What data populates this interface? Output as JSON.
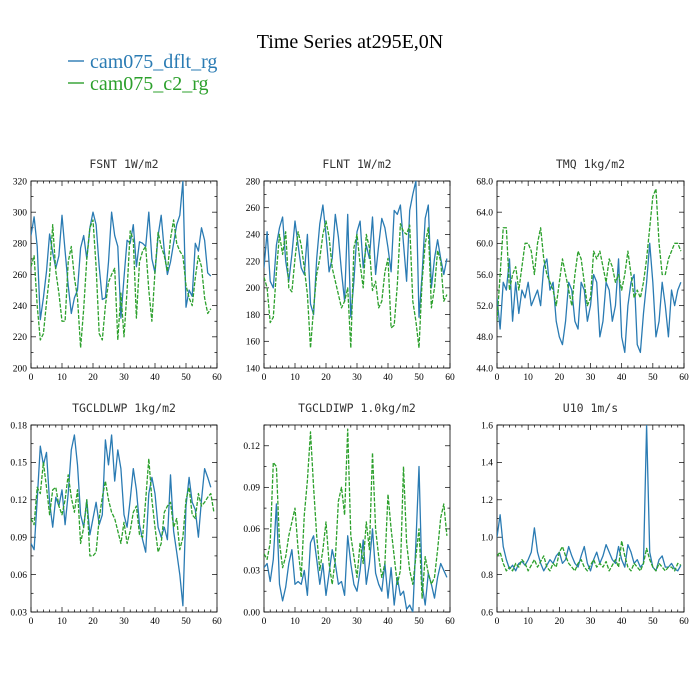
{
  "figure": {
    "title": "Time Series at295E,0N",
    "legend": [
      {
        "name": "cam075_dflt_rg",
        "color": "#2a7bb3",
        "dash": "none"
      },
      {
        "name": "cam075_c2_rg",
        "color": "#2ca02c",
        "dash": "4,1.5"
      }
    ]
  },
  "chart_data": [
    {
      "type": "line",
      "title": "FSNT   1W/m2",
      "xlim": [
        0,
        60
      ],
      "ylim": [
        200,
        320
      ],
      "xticks": [
        0,
        10,
        20,
        30,
        40,
        50,
        60
      ],
      "yticks": [
        "200",
        "220",
        "240",
        "260",
        "280",
        "300",
        "320"
      ],
      "series": [
        {
          "name": "cam075_dflt_rg",
          "values": [
            285,
            297,
            278,
            231,
            245,
            262,
            286,
            274,
            264,
            272,
            298,
            275,
            253,
            235,
            245,
            250,
            277,
            285,
            270,
            290,
            300,
            292,
            265,
            244,
            245,
            268,
            300,
            285,
            278,
            232,
            258,
            282,
            280,
            292,
            265,
            281,
            280,
            278,
            300,
            270,
            261,
            285,
            298,
            275,
            260,
            268,
            280,
            292,
            298,
            320,
            239,
            250,
            246,
            280,
            275,
            290,
            282,
            261,
            259
          ]
        },
        {
          "name": "cam075_c2_rg",
          "values": [
            265,
            272,
            240,
            218,
            222,
            242,
            260,
            292,
            262,
            248,
            230,
            230,
            268,
            278,
            258,
            245,
            213,
            238,
            270,
            290,
            295,
            265,
            222,
            218,
            240,
            255,
            260,
            264,
            218,
            248,
            220,
            250,
            288,
            282,
            232,
            268,
            275,
            278,
            250,
            230,
            262,
            287,
            278,
            272,
            262,
            283,
            295,
            280,
            275,
            272,
            253,
            245,
            240,
            258,
            272,
            265,
            245,
            235,
            238
          ]
        }
      ]
    },
    {
      "type": "line",
      "title": "FLNT   1W/m2",
      "xlim": [
        0,
        60
      ],
      "ylim": [
        140,
        280
      ],
      "xticks": [
        0,
        10,
        20,
        30,
        40,
        50,
        60
      ],
      "yticks": [
        "140",
        "160",
        "180",
        "200",
        "220",
        "240",
        "260",
        "280"
      ],
      "series": [
        {
          "name": "cam075_dflt_rg",
          "values": [
            215,
            242,
            205,
            200,
            232,
            245,
            253,
            220,
            205,
            225,
            250,
            232,
            215,
            210,
            240,
            188,
            180,
            222,
            248,
            262,
            240,
            212,
            222,
            255,
            238,
            212,
            190,
            255,
            178,
            205,
            242,
            250,
            215,
            232,
            222,
            253,
            210,
            232,
            252,
            245,
            230,
            212,
            258,
            255,
            262,
            233,
            205,
            258,
            270,
            280,
            178,
            210,
            252,
            262,
            200,
            222,
            236,
            222,
            210,
            222
          ]
        },
        {
          "name": "cam075_c2_rg",
          "values": [
            208,
            200,
            174,
            178,
            212,
            240,
            225,
            242,
            200,
            197,
            222,
            242,
            232,
            215,
            195,
            155,
            185,
            210,
            222,
            240,
            250,
            238,
            215,
            205,
            195,
            185,
            190,
            200,
            155,
            230,
            240,
            218,
            200,
            240,
            230,
            198,
            205,
            185,
            190,
            212,
            222,
            170,
            172,
            202,
            248,
            242,
            240,
            247,
            190,
            175,
            155,
            205,
            233,
            245,
            185,
            200,
            228,
            220,
            190,
            195
          ]
        }
      ]
    },
    {
      "type": "line",
      "title": "TMQ   1kg/m2",
      "xlim": [
        0,
        60
      ],
      "ylim": [
        44,
        68
      ],
      "xticks": [
        0,
        10,
        20,
        30,
        40,
        50,
        60
      ],
      "yticks": [
        "44.0",
        "48.0",
        "52.0",
        "56.0",
        "60.0",
        "64.0",
        "68.0"
      ],
      "series": [
        {
          "name": "cam075_dflt_rg",
          "values": [
            53,
            49,
            55,
            54,
            58,
            50,
            55,
            51,
            54,
            53,
            55,
            52,
            53,
            54,
            52,
            57,
            58,
            54,
            55,
            50,
            48,
            47,
            50,
            55,
            54,
            50,
            49,
            55,
            54,
            50,
            52,
            56,
            55,
            48,
            50,
            55,
            54,
            50,
            52,
            58,
            48,
            46,
            52,
            55,
            56,
            47,
            46,
            51,
            55,
            60,
            55,
            48,
            50,
            55,
            52,
            48,
            54,
            52,
            54,
            55
          ]
        },
        {
          "name": "cam075_c2_rg",
          "values": [
            50,
            56,
            62,
            62,
            54,
            56,
            57,
            54,
            57,
            60,
            60,
            59,
            56,
            60,
            62,
            58,
            56,
            55,
            54,
            52,
            55,
            58,
            56,
            54,
            52,
            56,
            59,
            58,
            55,
            52,
            53,
            59,
            58,
            59,
            57,
            55,
            58,
            57,
            55,
            56,
            54,
            56,
            59,
            56,
            53,
            54,
            53,
            55,
            58,
            62,
            66,
            67,
            60,
            56,
            56,
            58,
            59,
            60,
            60,
            59
          ]
        }
      ]
    },
    {
      "type": "line",
      "title": "TGCLDLWP   1kg/m2",
      "xlim": [
        0,
        60
      ],
      "ylim": [
        0.03,
        0.18
      ],
      "xticks": [
        0,
        10,
        20,
        30,
        40,
        50,
        60
      ],
      "yticks": [
        "0.03",
        "0.06",
        "0.09",
        "0.12",
        "0.15",
        "0.18"
      ],
      "series": [
        {
          "name": "cam075_dflt_rg",
          "values": [
            0.085,
            0.08,
            0.12,
            0.163,
            0.148,
            0.158,
            0.118,
            0.098,
            0.122,
            0.115,
            0.128,
            0.1,
            0.125,
            0.16,
            0.172,
            0.148,
            0.108,
            0.098,
            0.12,
            0.092,
            0.105,
            0.118,
            0.1,
            0.108,
            0.168,
            0.148,
            0.172,
            0.135,
            0.16,
            0.145,
            0.108,
            0.098,
            0.12,
            0.145,
            0.128,
            0.1,
            0.088,
            0.078,
            0.125,
            0.138,
            0.125,
            0.098,
            0.09,
            0.098,
            0.088,
            0.14,
            0.095,
            0.078,
            0.06,
            0.035,
            0.115,
            0.138,
            0.118,
            0.112,
            0.09,
            0.12,
            0.145,
            0.138,
            0.13
          ]
        },
        {
          "name": "cam075_c2_rg",
          "values": [
            0.105,
            0.1,
            0.13,
            0.125,
            0.15,
            0.13,
            0.108,
            0.128,
            0.13,
            0.115,
            0.108,
            0.12,
            0.14,
            0.122,
            0.11,
            0.128,
            0.085,
            0.098,
            0.12,
            0.075,
            0.075,
            0.078,
            0.105,
            0.122,
            0.135,
            0.12,
            0.11,
            0.105,
            0.095,
            0.085,
            0.102,
            0.085,
            0.095,
            0.11,
            0.115,
            0.092,
            0.09,
            0.12,
            0.153,
            0.12,
            0.098,
            0.078,
            0.085,
            0.11,
            0.115,
            0.118,
            0.098,
            0.105,
            0.08,
            0.09,
            0.12,
            0.13,
            0.108,
            0.105,
            0.125,
            0.115,
            0.118,
            0.122,
            0.125,
            0.11
          ]
        }
      ]
    },
    {
      "type": "line",
      "title": "TGCLDIWP   1.0kg/m2",
      "xlim": [
        0,
        60
      ],
      "ylim": [
        0,
        0.135
      ],
      "xticks": [
        0,
        10,
        20,
        30,
        40,
        50,
        60
      ],
      "yticks": [
        "0.00",
        "0.03",
        "0.06",
        "0.09",
        "0.12"
      ],
      "series": [
        {
          "name": "cam075_dflt_rg",
          "values": [
            0.032,
            0.035,
            0.022,
            0.038,
            0.078,
            0.02,
            0.008,
            0.018,
            0.035,
            0.045,
            0.02,
            0.022,
            0.02,
            0.03,
            0.012,
            0.05,
            0.055,
            0.038,
            0.02,
            0.035,
            0.012,
            0.028,
            0.045,
            0.035,
            0.02,
            0.022,
            0.012,
            0.055,
            0.035,
            0.02,
            0.015,
            0.03,
            0.052,
            0.02,
            0.035,
            0.06,
            0.028,
            0.02,
            0.015,
            0.035,
            0.01,
            0.032,
            0.005,
            0.025,
            0.012,
            0.015,
            0.002,
            0.005,
            0.0,
            0.05,
            0.105,
            0.02,
            0.005,
            0.028,
            0.02,
            0.01,
            0.025,
            0.035,
            0.03,
            0.025
          ]
        },
        {
          "name": "cam075_c2_rg",
          "values": [
            0.042,
            0.038,
            0.05,
            0.108,
            0.105,
            0.05,
            0.032,
            0.04,
            0.055,
            0.065,
            0.075,
            0.045,
            0.025,
            0.07,
            0.095,
            0.13,
            0.09,
            0.055,
            0.03,
            0.045,
            0.065,
            0.035,
            0.02,
            0.038,
            0.08,
            0.09,
            0.07,
            0.132,
            0.055,
            0.04,
            0.025,
            0.05,
            0.035,
            0.065,
            0.045,
            0.115,
            0.06,
            0.04,
            0.025,
            0.035,
            0.085,
            0.06,
            0.04,
            0.02,
            0.03,
            0.105,
            0.05,
            0.03,
            0.02,
            0.04,
            0.06,
            0.01,
            0.04,
            0.028,
            0.02,
            0.025,
            0.045,
            0.068,
            0.078,
            0.055
          ]
        }
      ]
    },
    {
      "type": "line",
      "title": "U10   1m/s",
      "xlim": [
        0,
        60
      ],
      "ylim": [
        0.6,
        1.6
      ],
      "xticks": [
        0,
        10,
        20,
        30,
        40,
        50,
        60
      ],
      "yticks": [
        "0.6",
        "0.8",
        "1.0",
        "1.2",
        "1.4",
        "1.6"
      ],
      "series": [
        {
          "name": "cam075_dflt_rg",
          "values": [
            1.0,
            1.12,
            0.95,
            0.88,
            0.83,
            0.85,
            0.82,
            0.86,
            0.87,
            0.85,
            0.88,
            0.92,
            1.05,
            0.92,
            0.86,
            0.82,
            0.85,
            0.88,
            0.86,
            0.9,
            0.92,
            0.86,
            0.88,
            0.95,
            0.9,
            0.86,
            0.84,
            0.9,
            0.95,
            0.86,
            0.82,
            0.88,
            0.92,
            0.86,
            0.9,
            0.96,
            0.92,
            0.88,
            0.86,
            0.95,
            0.88,
            0.84,
            0.96,
            0.92,
            0.86,
            0.88,
            0.84,
            0.86,
            1.6,
            0.92,
            0.84,
            0.82,
            0.88,
            0.9,
            0.84,
            0.84,
            0.86,
            0.83,
            0.82,
            0.85
          ]
        },
        {
          "name": "cam075_c2_rg",
          "values": [
            0.9,
            0.92,
            0.86,
            0.82,
            0.84,
            0.82,
            0.86,
            0.84,
            0.88,
            0.86,
            0.82,
            0.85,
            0.88,
            0.84,
            0.87,
            0.9,
            0.84,
            0.82,
            0.86,
            0.84,
            0.92,
            0.95,
            0.9,
            0.86,
            0.84,
            0.82,
            0.86,
            0.88,
            0.84,
            0.82,
            0.85,
            0.88,
            0.84,
            0.86,
            0.84,
            0.87,
            0.82,
            0.85,
            0.88,
            0.84,
            0.98,
            0.9,
            0.84,
            0.82,
            0.86,
            0.84,
            0.82,
            0.86,
            0.94,
            0.88,
            0.84,
            0.82,
            0.86,
            0.84,
            0.82,
            0.84,
            0.84,
            0.82,
            0.86,
            0.85
          ]
        }
      ]
    }
  ]
}
